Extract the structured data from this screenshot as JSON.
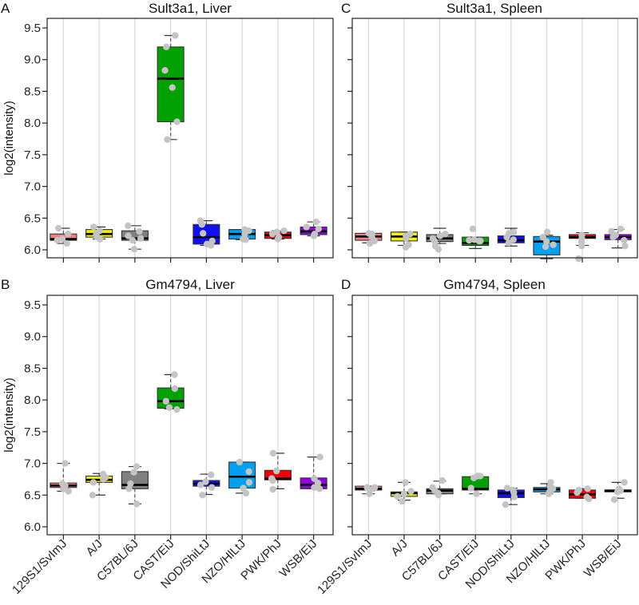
{
  "chart_data": [
    {
      "type": "box",
      "panel_letter": "A",
      "title": "Sult3a1, Liver",
      "ylabel": "log2(intensity)",
      "xlabel": "",
      "ylim": [
        5.85,
        9.62
      ],
      "yticks": [
        "6.0",
        "6.5",
        "7.0",
        "7.5",
        "8.0",
        "8.5",
        "9.0",
        "9.5"
      ],
      "show_ytick_labels": true,
      "show_xtick_labels": false,
      "grid": "vertical",
      "categories": [
        "129S1/SvImJ",
        "A/J",
        "C57BL/6J",
        "CAST/EiJ",
        "NOD/ShiLtJ",
        "NZO/HlLtJ",
        "PWK/PhJ",
        "WSB/EiJ"
      ],
      "colors": [
        "#F08080",
        "#F0F000",
        "#808080",
        "#00A000",
        "#1010F0",
        "#00A0F0",
        "#F00000",
        "#9000E0"
      ],
      "boxes": [
        {
          "q1": 6.15,
          "median": 6.17,
          "q3": 6.25,
          "whisker_low": 6.1,
          "whisker_high": 6.34,
          "points": [
            6.1,
            6.15,
            6.17,
            6.25,
            6.34
          ]
        },
        {
          "q1": 6.2,
          "median": 6.25,
          "q3": 6.32,
          "whisker_low": 6.17,
          "whisker_high": 6.36,
          "points": [
            6.17,
            6.2,
            6.25,
            6.3,
            6.36
          ]
        },
        {
          "q1": 6.15,
          "median": 6.18,
          "q3": 6.3,
          "whisker_low": 6.01,
          "whisker_high": 6.38,
          "points": [
            6.01,
            6.15,
            6.18,
            6.22,
            6.29,
            6.38
          ]
        },
        {
          "q1": 8.02,
          "median": 8.7,
          "q3": 9.2,
          "whisker_low": 7.74,
          "whisker_high": 9.38,
          "points": [
            7.74,
            8.02,
            8.56,
            8.83,
            9.2,
            9.38
          ]
        },
        {
          "q1": 6.09,
          "median": 6.2,
          "q3": 6.4,
          "whisker_low": 6.07,
          "whisker_high": 6.46,
          "points": [
            6.07,
            6.09,
            6.14,
            6.26,
            6.4,
            6.46
          ]
        },
        {
          "q1": 6.17,
          "median": 6.25,
          "q3": 6.32,
          "whisker_low": 6.16,
          "whisker_high": 6.32,
          "points": [
            6.16,
            6.17,
            6.25,
            6.3,
            6.32
          ]
        },
        {
          "q1": 6.18,
          "median": 6.23,
          "q3": 6.28,
          "whisker_low": 6.17,
          "whisker_high": 6.3,
          "points": [
            6.17,
            6.2,
            6.25,
            6.28,
            6.3
          ]
        },
        {
          "q1": 6.24,
          "median": 6.29,
          "q3": 6.36,
          "whisker_low": 6.22,
          "whisker_high": 6.44,
          "points": [
            6.22,
            6.25,
            6.33,
            6.36,
            6.44
          ]
        }
      ]
    },
    {
      "type": "box",
      "panel_letter": "C",
      "title": "Sult3a1, Spleen",
      "ylabel": "",
      "xlabel": "",
      "ylim": [
        5.85,
        9.62
      ],
      "yticks": [
        "6.0",
        "6.5",
        "7.0",
        "7.5",
        "8.0",
        "8.5",
        "9.0",
        "9.5"
      ],
      "show_ytick_labels": false,
      "show_xtick_labels": false,
      "grid": "vertical",
      "categories": [
        "129S1/SvImJ",
        "A/J",
        "C57BL/6J",
        "CAST/EiJ",
        "NOD/ShiLtJ",
        "NZO/HlLtJ",
        "PWK/PhJ",
        "WSB/EiJ"
      ],
      "colors": [
        "#F08080",
        "#F0F000",
        "#808080",
        "#00A000",
        "#1010F0",
        "#00A0F0",
        "#F00000",
        "#9000E0"
      ],
      "boxes": [
        {
          "q1": 6.15,
          "median": 6.21,
          "q3": 6.26,
          "whisker_low": 6.11,
          "whisker_high": 6.26,
          "points": [
            6.1,
            6.14,
            6.2,
            6.25,
            6.26
          ]
        },
        {
          "q1": 6.14,
          "median": 6.21,
          "q3": 6.28,
          "whisker_low": 6.07,
          "whisker_high": 6.28,
          "points": [
            6.04,
            6.08,
            6.18,
            6.22,
            6.25
          ]
        },
        {
          "q1": 6.13,
          "median": 6.18,
          "q3": 6.24,
          "whisker_low": 6.1,
          "whisker_high": 6.34,
          "points": [
            6.01,
            6.06,
            6.14,
            6.18,
            6.22,
            6.25
          ]
        },
        {
          "q1": 6.07,
          "median": 6.11,
          "q3": 6.2,
          "whisker_low": 6.02,
          "whisker_high": 6.2,
          "points": [
            6.14,
            6.14,
            6.15,
            6.16,
            6.33
          ]
        },
        {
          "q1": 6.11,
          "median": 6.15,
          "q3": 6.22,
          "whisker_low": 6.06,
          "whisker_high": 6.34,
          "points": [
            6.11,
            6.16,
            6.2,
            6.26,
            6.28
          ]
        },
        {
          "q1": 5.92,
          "median": 6.13,
          "q3": 6.21,
          "whisker_low": 5.86,
          "whisker_high": 6.23,
          "points": [
            6.05,
            6.08,
            6.13,
            6.2,
            6.28
          ]
        },
        {
          "q1": 6.18,
          "median": 6.2,
          "q3": 6.24,
          "whisker_low": 6.07,
          "whisker_high": 6.27,
          "points": [
            5.86,
            6.06,
            6.12,
            6.18,
            6.23
          ]
        },
        {
          "q1": 6.16,
          "median": 6.2,
          "q3": 6.24,
          "whisker_low": 6.03,
          "whisker_high": 6.32,
          "points": [
            6.06,
            6.15,
            6.2,
            6.23,
            6.29,
            6.33
          ]
        }
      ]
    },
    {
      "type": "box",
      "panel_letter": "B",
      "title": "Gm4794, Liver",
      "ylabel": "log2(intensity)",
      "xlabel": "",
      "ylim": [
        5.85,
        9.62
      ],
      "yticks": [
        "6.0",
        "6.5",
        "7.0",
        "7.5",
        "8.0",
        "8.5",
        "9.0",
        "9.5"
      ],
      "show_ytick_labels": true,
      "show_xtick_labels": true,
      "grid": "vertical",
      "categories": [
        "129S1/SvImJ",
        "A/J",
        "C57BL/6J",
        "CAST/EiJ",
        "NOD/ShiLtJ",
        "NZO/HlLtJ",
        "PWK/PhJ",
        "WSB/EiJ"
      ],
      "colors": [
        "#F08080",
        "#F0F000",
        "#808080",
        "#00A000",
        "#1010F0",
        "#00A0F0",
        "#F00000",
        "#9000E0"
      ],
      "boxes": [
        {
          "q1": 6.62,
          "median": 6.65,
          "q3": 6.69,
          "whisker_low": 6.56,
          "whisker_high": 7.0,
          "points": [
            6.56,
            6.6,
            6.65,
            6.68,
            7.0
          ]
        },
        {
          "q1": 6.7,
          "median": 6.74,
          "q3": 6.8,
          "whisker_low": 6.5,
          "whisker_high": 6.84,
          "points": [
            6.5,
            6.7,
            6.75,
            6.78,
            6.83
          ]
        },
        {
          "q1": 6.6,
          "median": 6.66,
          "q3": 6.87,
          "whisker_low": 6.36,
          "whisker_high": 6.95,
          "points": [
            6.36,
            6.6,
            6.68,
            6.86,
            6.95
          ]
        },
        {
          "q1": 7.87,
          "median": 7.98,
          "q3": 8.19,
          "whisker_low": 7.86,
          "whisker_high": 8.4,
          "points": [
            7.85,
            7.88,
            7.98,
            8.18,
            8.4
          ]
        },
        {
          "q1": 6.64,
          "median": 6.68,
          "q3": 6.73,
          "whisker_low": 6.51,
          "whisker_high": 6.83,
          "points": [
            6.5,
            6.62,
            6.66,
            6.71,
            6.82
          ]
        },
        {
          "q1": 6.61,
          "median": 6.79,
          "q3": 7.02,
          "whisker_low": 6.53,
          "whisker_high": 7.02,
          "points": [
            6.53,
            6.61,
            6.7,
            6.87,
            7.02
          ]
        },
        {
          "q1": 6.74,
          "median": 6.76,
          "q3": 6.89,
          "whisker_low": 6.6,
          "whisker_high": 7.16,
          "points": [
            6.59,
            6.73,
            6.76,
            6.88,
            7.16
          ]
        },
        {
          "q1": 6.6,
          "median": 6.66,
          "q3": 6.77,
          "whisker_low": 6.6,
          "whisker_high": 7.1,
          "points": [
            6.6,
            6.62,
            6.69,
            6.76,
            7.1
          ]
        }
      ]
    },
    {
      "type": "box",
      "panel_letter": "D",
      "title": "Gm4794, Spleen",
      "ylabel": "",
      "xlabel": "",
      "ylim": [
        5.85,
        9.62
      ],
      "yticks": [
        "6.0",
        "6.5",
        "7.0",
        "7.5",
        "8.0",
        "8.5",
        "9.0",
        "9.5"
      ],
      "show_ytick_labels": false,
      "show_xtick_labels": true,
      "grid": "vertical",
      "categories": [
        "129S1/SvImJ",
        "A/J",
        "C57BL/6J",
        "CAST/EiJ",
        "NOD/ShiLtJ",
        "NZO/HlLtJ",
        "PWK/PhJ",
        "WSB/EiJ"
      ],
      "colors": [
        "#F08080",
        "#F0F000",
        "#808080",
        "#00A000",
        "#1010F0",
        "#00A0F0",
        "#F00000",
        "#9000E0"
      ],
      "boxes": [
        {
          "q1": 6.58,
          "median": 6.6,
          "q3": 6.64,
          "whisker_low": 6.52,
          "whisker_high": 6.64,
          "points": [
            6.52,
            6.58,
            6.6,
            6.62,
            6.62
          ]
        },
        {
          "q1": 6.48,
          "median": 6.53,
          "q3": 6.55,
          "whisker_low": 6.42,
          "whisker_high": 6.7,
          "points": [
            6.4,
            6.48,
            6.52,
            6.56,
            6.7
          ]
        },
        {
          "q1": 6.52,
          "median": 6.57,
          "q3": 6.6,
          "whisker_low": 6.52,
          "whisker_high": 6.72,
          "points": [
            6.5,
            6.53,
            6.57,
            6.62,
            6.73
          ]
        },
        {
          "q1": 6.58,
          "median": 6.6,
          "q3": 6.79,
          "whisker_low": 6.52,
          "whisker_high": 6.79,
          "points": [
            6.52,
            6.61,
            6.77,
            6.8,
            6.8
          ]
        },
        {
          "q1": 6.46,
          "median": 6.53,
          "q3": 6.58,
          "whisker_low": 6.35,
          "whisker_high": 6.61,
          "points": [
            6.35,
            6.47,
            6.54,
            6.58,
            6.61
          ]
        },
        {
          "q1": 6.55,
          "median": 6.59,
          "q3": 6.62,
          "whisker_low": 6.52,
          "whisker_high": 6.68,
          "points": [
            6.52,
            6.56,
            6.6,
            6.64,
            6.7
          ]
        },
        {
          "q1": 6.45,
          "median": 6.51,
          "q3": 6.58,
          "whisker_low": 6.45,
          "whisker_high": 6.6,
          "points": [
            6.44,
            6.47,
            6.54,
            6.58,
            6.6
          ]
        },
        {
          "q1": 6.55,
          "median": 6.57,
          "q3": 6.58,
          "whisker_low": 6.45,
          "whisker_high": 6.7,
          "points": [
            6.43,
            6.55,
            6.57,
            6.6,
            6.7
          ]
        }
      ]
    }
  ]
}
